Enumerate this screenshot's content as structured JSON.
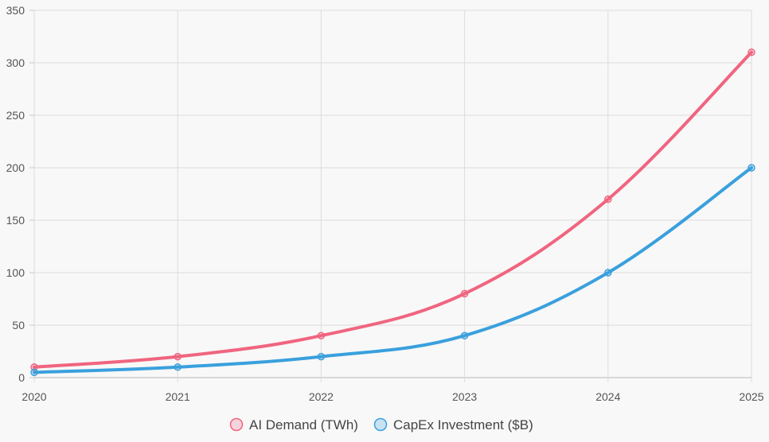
{
  "chart_data": {
    "type": "line",
    "categories": [
      "2020",
      "2021",
      "2022",
      "2023",
      "2024",
      "2025"
    ],
    "ylim": [
      0,
      350
    ],
    "yticks": [
      0,
      50,
      100,
      150,
      200,
      250,
      300,
      350
    ],
    "grid": true,
    "legend_position": "bottom",
    "series": [
      {
        "name": "AI Demand (TWh)",
        "values": [
          10,
          20,
          40,
          80,
          170,
          310
        ],
        "color": "#f0657f"
      },
      {
        "name": "CapEx Investment ($B)",
        "values": [
          5,
          10,
          20,
          40,
          100,
          200
        ],
        "color": "#3aa0dd"
      }
    ]
  }
}
